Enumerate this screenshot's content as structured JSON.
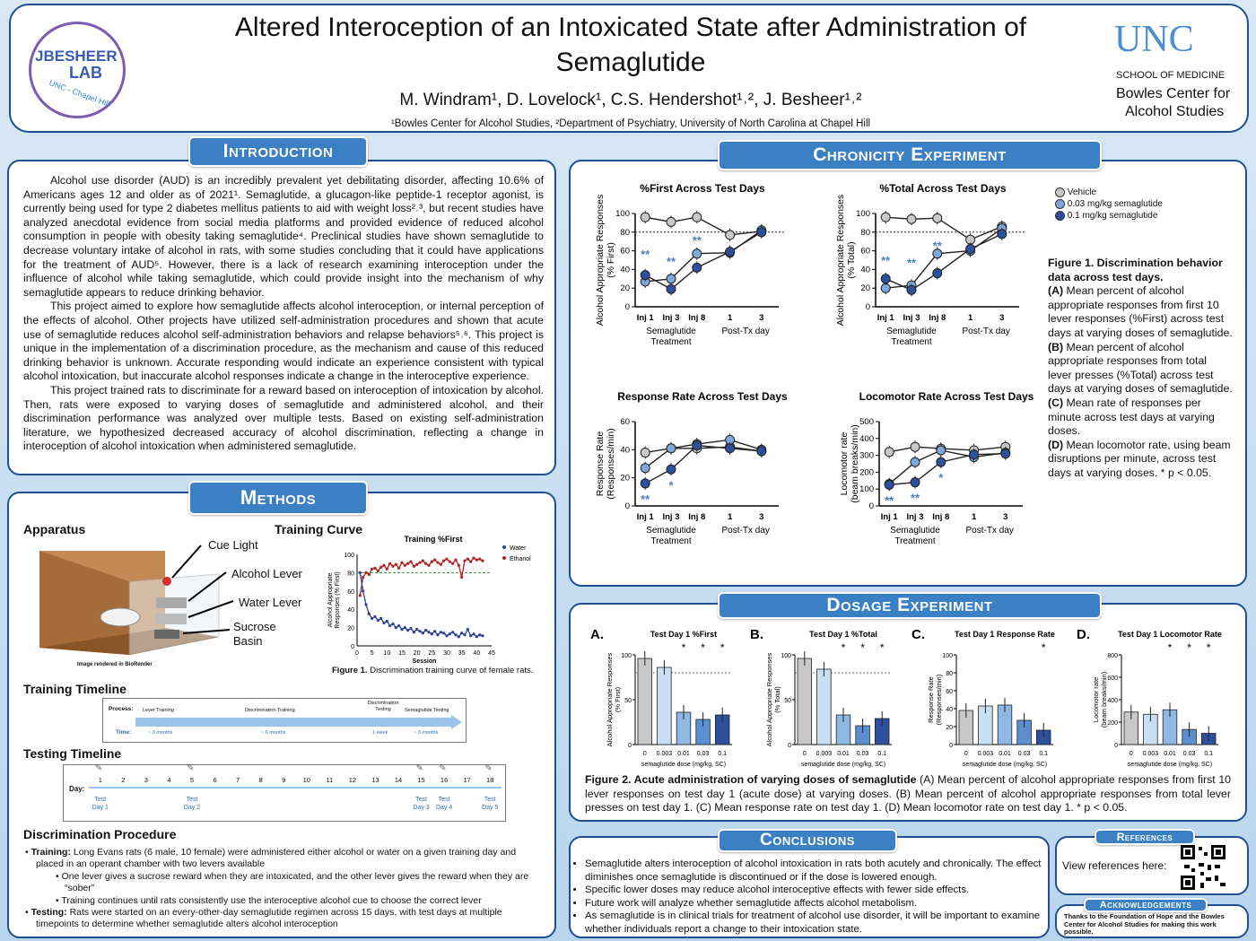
{
  "title": {
    "line1": "Altered Interoception of an Intoxicated State after Administration of",
    "line2": "Semaglutide",
    "authors": "M. Windram¹, D. Lovelock¹, C.S. Hendershot¹˒², J. Besheer¹˒²",
    "affiliations": "¹Bowles Center for Alcohol Studies, ²Department of Psychiatry, University of North Carolina at Chapel Hill"
  },
  "logo_left": {
    "line1": "JBESHEER",
    "line2": "LAB",
    "arc": "UNC - Chapel Hill"
  },
  "logo_right": {
    "brand": "UNC",
    "school": "SCHOOL OF MEDICINE",
    "center1": "Bowles Center for",
    "center2": "Alcohol Studies"
  },
  "colors": {
    "accent": "#3b7fc4",
    "border": "#1f4f8f",
    "vehicle": "#c8c8c8",
    "low": "#7fa8d8",
    "high": "#2e4f9c",
    "ethanol": "#b22222",
    "water": "#2e3f9c"
  },
  "intro": {
    "header": "Introduction",
    "paragraphs": [
      "Alcohol use disorder (AUD) is an incredibly prevalent yet debilitating disorder, affecting 10.6% of Americans ages 12 and older as of 2021¹. Semaglutide, a glucagon-like peptide-1 receptor agonist, is currently being used for type 2 diabetes mellitus patients to aid with weight loss²˒³, but recent studies have analyzed anecdotal evidence from social media platforms and provided evidence of reduced alcohol consumption in people with obesity taking semaglutide⁴. Preclinical studies have shown semaglutide to decrease voluntary intake of alcohol in rats, with some studies concluding that it could have applications for the treatment of AUD⁵. However, there is a lack of research examining interoception under the influence of alcohol while taking semaglutide, which could provide insight into the mechanism of why semaglutide appears to reduce drinking behavior.",
      "This project aimed to explore how semaglutide affects alcohol interoception, or internal perception of the effects of alcohol. Other projects have utilized self-administration procedures and shown that acute use of semaglutide reduces alcohol self-administration behaviors and relapse behaviors⁵˒⁶. This project is unique in the implementation of a discrimination procedure, as the mechanism and cause of this reduced drinking behavior is unknown. Accurate responding would indicate an experience consistent with typical alcohol intoxication, but inaccurate alcohol responses indicate a change in the interoceptive experience.",
      "This project trained rats to discriminate for a reward based on interoception of intoxication by alcohol. Then, rats were exposed to varying doses of semaglutide and administered alcohol, and their discrimination performance was analyzed over multiple tests. Based on existing self-administration literature, we hypothesized decreased accuracy of alcohol discrimination, reflecting a change in interoception of alcohol intoxication when administered semaglutide."
    ]
  },
  "methods": {
    "header": "Methods",
    "apparatus": "Apparatus",
    "training_curve": "Training Curve",
    "labels": {
      "cue": "Cue Light",
      "alcohol": "Alcohol Lever",
      "water": "Water Lever",
      "sucrose1": "Sucrose",
      "sucrose2": "Basin",
      "credit": "Image rendered in BioRender"
    },
    "tc_title": "Training %First",
    "tc_ylabel1": "Alcohol Appropriate",
    "tc_ylabel2": "Responses (% First)",
    "tc_xlabel": "Session",
    "tc_legend": [
      "Water",
      "Ethanol"
    ],
    "tc_caption": "Figure 1. Discrimination training curve of female rats.",
    "training_timeline": "Training Timeline",
    "tt": {
      "process": "Process:",
      "time": "Time:",
      "phases": [
        "Lever Training",
        "Discrimination Training",
        "Discrimination Testing",
        "Semaglutide Testing"
      ],
      "durations": [
        "~ 3 months",
        "~ 6 months",
        "1 week",
        "~ 3 months"
      ]
    },
    "testing_timeline": "Testing Timeline",
    "days_label": "Day:",
    "days": [
      "1",
      "2",
      "3",
      "4",
      "5",
      "6",
      "7",
      "8",
      "9",
      "10",
      "11",
      "12",
      "13",
      "14",
      "15",
      "16",
      "17",
      "18"
    ],
    "test_marks": [
      {
        "day": "1",
        "label": "Test Day 1"
      },
      {
        "day": "5",
        "label": "Test Day 2"
      },
      {
        "day": "15",
        "label": "Test Day 3"
      },
      {
        "day": "16",
        "label": "Test Day 4"
      },
      {
        "day": "18",
        "label": "Test Day 5"
      }
    ],
    "discrimination": "Discrimination Procedure",
    "bullets": [
      {
        "bold": "Training:",
        "text": " Long Evans rats (6 male, 10 female) were administered either alcohol or water on a given training day and placed in an operant chamber with two levers available"
      },
      {
        "sub": "One lever gives a sucrose reward when they are intoxicated, and the other lever gives the reward when they are “sober”"
      },
      {
        "sub": "Training continues until rats consistently use the interoceptive alcohol cue to choose the correct lever"
      },
      {
        "bold": "Testing:",
        "text": " Rats were started on an every-other-day semaglutide regimen across 15 days, with test days at multiple timepoints to determine whether semaglutide alters alcohol interoception"
      }
    ]
  },
  "chronicity": {
    "header": "Chronicity Experiment",
    "legend": [
      "Vehicle",
      "0.03 mg/kg semaglutide",
      "0.1 mg/kg semaglutide"
    ],
    "caption": {
      "title": "Figure 1. Discrimination behavior data across test days.",
      "items": [
        [
          "(A)",
          " Mean percent of alcohol appropriate responses from first 10 lever responses (%First) across test days at varying doses of semaglutide."
        ],
        [
          "(B)",
          " Mean percent of alcohol appropriate responses from total lever presses (%Total) across test days at varying doses of semaglutide."
        ],
        [
          "(C)",
          " Mean rate of responses per minute across test days at varying doses."
        ],
        [
          "(D)",
          " Mean locomotor rate, using beam disruptions per minute, across test days at varying doses. * p < 0.05."
        ]
      ]
    }
  },
  "dosage": {
    "header": "Dosage Experiment",
    "caption_bold": "Figure 2. Acute administration of varying doses of semaglutide",
    "caption": "(A) Mean percent of alcohol appropriate responses from first 10 lever responses on test day 1 (acute dose) at varying doses. (B) Mean percent of alcohol appropriate responses from total lever presses on test day 1. (C) Mean response rate on test day 1. (D) Mean locomotor rate on test day 1.  * p < 0.05."
  },
  "conclusions": {
    "header": "Conclusions",
    "items": [
      "Semaglutide alters interoception of alcohol intoxication in rats both acutely and chronically. The effect diminishes once semaglutide is discontinued or if the dose is lowered enough.",
      "Specific lower doses may reduce alcohol interoceptive effects with fewer side effects.",
      "Future work will analyze whether semaglutide affects alcohol metabolism.",
      "As semaglutide is in clinical trials for treatment of alcohol use disorder, it will be important to examine whether individuals report a change to their intoxication state."
    ]
  },
  "references": {
    "header": "References",
    "text": "View references here:"
  },
  "ack": {
    "header": "Acknowledgements",
    "text": "Thanks to the Foundation of Hope and the Bowles Center for Alcohol Studies for making this work possible."
  },
  "chart_data": [
    {
      "id": "A",
      "type": "line",
      "title": "%First Across Test Days",
      "ylabel": "Alcohol Appropriate Responses (% First)",
      "xlabel": "Semaglutide Treatment / Post-Tx day",
      "categories": [
        "Inj 1",
        "Inj 3",
        "Inj 8",
        "1",
        "3"
      ],
      "ylim": [
        0,
        100
      ],
      "yticks": [
        0,
        20,
        40,
        60,
        80,
        100
      ],
      "series": [
        {
          "name": "Vehicle",
          "values": [
            96,
            91,
            96,
            77,
            81
          ]
        },
        {
          "name": "0.03 mg/kg semaglutide",
          "values": [
            27,
            30,
            57,
            58,
            82
          ]
        },
        {
          "name": "0.1 mg/kg semaglutide",
          "values": [
            34,
            19,
            42,
            59,
            80
          ]
        }
      ],
      "sig": [
        {
          "x": "Inj 1",
          "mark": "**"
        },
        {
          "x": "Inj 3",
          "mark": "**"
        },
        {
          "x": "Inj 8",
          "mark": "**"
        }
      ],
      "ref_line": 80
    },
    {
      "id": "B",
      "type": "line",
      "title": "%Total Across Test Days",
      "ylabel": "Alcohol Appropriate Responses (% Total)",
      "xlabel": "Semaglutide Treatment / Post-Tx day",
      "categories": [
        "Inj 1",
        "Inj 3",
        "Inj 8",
        "1",
        "3"
      ],
      "ylim": [
        0,
        100
      ],
      "yticks": [
        0,
        20,
        40,
        60,
        80,
        100
      ],
      "series": [
        {
          "name": "Vehicle",
          "values": [
            96,
            94,
            95,
            72,
            86
          ]
        },
        {
          "name": "0.03 mg/kg semaglutide",
          "values": [
            20,
            23,
            57,
            60,
            84
          ]
        },
        {
          "name": "0.1 mg/kg semaglutide",
          "values": [
            30,
            18,
            36,
            62,
            78
          ]
        }
      ],
      "sig": [
        {
          "x": "Inj 1",
          "mark": "**"
        },
        {
          "x": "Inj 3",
          "mark": "**"
        },
        {
          "x": "Inj 8",
          "mark": "**"
        }
      ],
      "ref_line": 80
    },
    {
      "id": "C",
      "type": "line",
      "title": "Response Rate Across Test Days",
      "ylabel": "Response Rate (Responses/min)",
      "xlabel": "Semaglutide Treatment / Post-Tx day",
      "categories": [
        "Inj 1",
        "Inj 3",
        "Inj 8",
        "1",
        "3"
      ],
      "ylim": [
        0,
        60
      ],
      "yticks": [
        0,
        20,
        40,
        60
      ],
      "series": [
        {
          "name": "Vehicle",
          "values": [
            38,
            41,
            41,
            42,
            39
          ]
        },
        {
          "name": "0.03 mg/kg semaglutide",
          "values": [
            27,
            41,
            44,
            47,
            40
          ]
        },
        {
          "name": "0.1 mg/kg semaglutide",
          "values": [
            16,
            26,
            43,
            41,
            39
          ]
        }
      ],
      "sig": [
        {
          "x": "Inj 1",
          "mark": "**"
        },
        {
          "x": "Inj 3",
          "mark": "*"
        }
      ]
    },
    {
      "id": "D",
      "type": "line",
      "title": "Locomotor Rate Across Test Days",
      "ylabel": "Locomotor rate (beam breaks/min)",
      "xlabel": "Semaglutide Treatment / Post-Tx day",
      "categories": [
        "Inj 1",
        "Inj 3",
        "Inj 8",
        "1",
        "3"
      ],
      "ylim": [
        0,
        500
      ],
      "yticks": [
        0,
        100,
        200,
        300,
        400,
        500
      ],
      "series": [
        {
          "name": "Vehicle",
          "values": [
            320,
            350,
            340,
            330,
            350
          ]
        },
        {
          "name": "0.03 mg/kg semaglutide",
          "values": [
            130,
            260,
            330,
            290,
            315
          ]
        },
        {
          "name": "0.1 mg/kg semaglutide",
          "values": [
            125,
            140,
            260,
            305,
            310
          ]
        }
      ],
      "sig": [
        {
          "x": "Inj 1",
          "mark": "**"
        },
        {
          "x": "Inj 3",
          "mark": "**"
        },
        {
          "x": "Inj 8",
          "mark": "*"
        }
      ]
    },
    {
      "id": "A.",
      "type": "bar",
      "title": "Test Day 1 %First",
      "ylabel": "Alcohol Appropriate Responses (% First)",
      "xlabel": "semaglutide dose (mg/kg, SC)",
      "categories": [
        "0",
        "0.003",
        "0.01",
        "0.03",
        "0.1"
      ],
      "values": [
        96,
        86,
        36,
        28,
        33
      ],
      "ylim": [
        0,
        100
      ],
      "yticks": [
        0,
        50,
        100
      ],
      "sig": [
        "0.01",
        "0.03",
        "0.1"
      ]
    },
    {
      "id": "B.",
      "type": "bar",
      "title": "Test Day 1 %Total",
      "ylabel": "Alcohol Appropriate Responses (% Total)",
      "xlabel": "semaglutide dose (mg/kg, SC)",
      "categories": [
        "0",
        "0.003",
        "0.01",
        "0.03",
        "0.1"
      ],
      "values": [
        96,
        84,
        33,
        21,
        29
      ],
      "ylim": [
        0,
        100
      ],
      "yticks": [
        0,
        50,
        100
      ],
      "sig": [
        "0.01",
        "0.03",
        "0.1"
      ]
    },
    {
      "id": "C.",
      "type": "bar",
      "title": "Test Day 1 Response Rate",
      "ylabel": "Response Rate (Responses/min)",
      "xlabel": "semaglutide dose (mg/kg, SC)",
      "categories": [
        "0",
        "0.003",
        "0.01",
        "0.03",
        "0.1"
      ],
      "values": [
        38,
        43,
        44,
        27,
        16
      ],
      "ylim": [
        0,
        100
      ],
      "yticks": [
        0,
        20,
        40,
        60,
        80,
        100
      ],
      "sig": [
        "0.1"
      ]
    },
    {
      "id": "D.",
      "type": "bar",
      "title": "Test Day 1 Locomotor Rate",
      "ylabel": "Locomotor rate (beam breaks/min)",
      "xlabel": "semaglutide dose (mg/kg, SC)",
      "categories": [
        "0",
        "0.003",
        "0.01",
        "0.03",
        "0.1"
      ],
      "values": [
        290,
        270,
        310,
        135,
        100
      ],
      "ylim": [
        0,
        800
      ],
      "yticks": [
        0,
        200,
        400,
        600,
        800
      ],
      "sig": [
        "0.01",
        "0.03",
        "0.1"
      ]
    },
    {
      "id": "training",
      "type": "line",
      "title": "Training %First",
      "xlabel": "Session",
      "ylabel": "Alcohol Appropriate Responses (% First)",
      "ylim": [
        0,
        100
      ],
      "xlim": [
        0,
        45
      ],
      "series": [
        {
          "name": "Ethanol",
          "values": [
            55,
            75,
            80,
            78,
            84,
            85,
            82,
            86,
            88,
            84,
            90,
            87,
            89,
            85,
            91,
            88,
            90,
            92,
            87,
            89,
            91,
            93,
            90,
            88,
            92,
            94,
            91,
            89,
            93,
            95,
            92,
            90,
            94,
            88,
            75,
            93,
            95,
            92,
            96,
            94,
            95,
            93
          ]
        },
        {
          "name": "Water",
          "values": [
            80,
            60,
            45,
            35,
            30,
            32,
            28,
            30,
            25,
            27,
            22,
            24,
            20,
            22,
            18,
            20,
            17,
            19,
            15,
            18,
            16,
            14,
            17,
            15,
            13,
            16,
            12,
            15,
            14,
            11,
            13,
            15,
            12,
            10,
            14,
            12,
            18,
            11,
            13,
            10,
            12,
            11
          ]
        }
      ],
      "ref_line": 80
    }
  ]
}
